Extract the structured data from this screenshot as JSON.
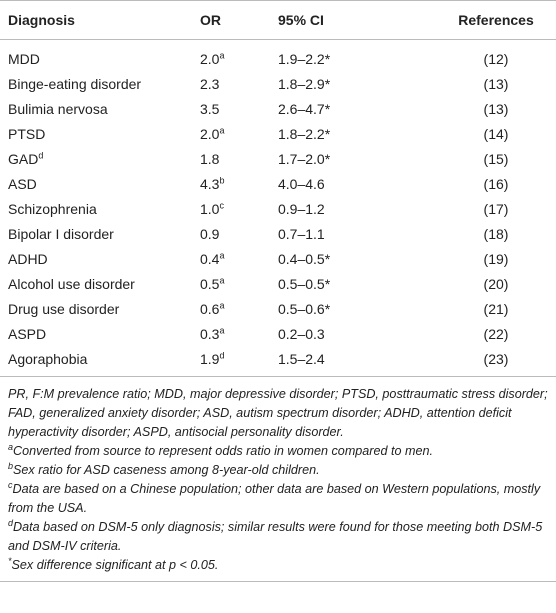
{
  "table": {
    "header": [
      "Diagnosis",
      "OR",
      "95% CI",
      "References"
    ],
    "rows": [
      [
        "MDD",
        {
          "text": "2.0",
          "sup": "a"
        },
        "1.9–2.2*",
        "(12)"
      ],
      [
        "Binge-eating disorder",
        "2.3",
        "1.8–2.9*",
        "(13)"
      ],
      [
        "Bulimia nervosa",
        "3.5",
        "2.6–4.7*",
        "(13)"
      ],
      [
        "PTSD",
        {
          "text": "2.0",
          "sup": "a"
        },
        "1.8–2.2*",
        "(14)"
      ],
      [
        {
          "text": "GAD",
          "sup": "d"
        },
        "1.8",
        "1.7–2.0*",
        "(15)"
      ],
      [
        "ASD",
        {
          "text": "4.3",
          "sup": "b"
        },
        "4.0–4.6",
        "(16)"
      ],
      [
        "Schizophrenia",
        {
          "text": "1.0",
          "sup": "c"
        },
        "0.9–1.2",
        "(17)"
      ],
      [
        "Bipolar I disorder",
        "0.9",
        "0.7–1.1",
        "(18)"
      ],
      [
        "ADHD",
        {
          "text": "0.4",
          "sup": "a"
        },
        "0.4–0.5*",
        "(19)"
      ],
      [
        "Alcohol use disorder",
        {
          "text": "0.5",
          "sup": "a"
        },
        "0.5–0.5*",
        "(20)"
      ],
      [
        "Drug use disorder",
        {
          "text": "0.6",
          "sup": "a"
        },
        "0.5–0.6*",
        "(21)"
      ],
      [
        "ASPD",
        {
          "text": "0.3",
          "sup": "a"
        },
        "0.2–0.3",
        "(22)"
      ],
      [
        "Agoraphobia",
        {
          "text": "1.9",
          "sup": "d"
        },
        "1.5–2.4",
        "(23)"
      ]
    ]
  },
  "footnotes": {
    "abbreviations": "PR, F:M prevalence ratio; MDD, major depressive disorder; PTSD, posttraumatic stress disorder; FAD, generalized anxiety disorder; ASD, autism spectrum disorder; ADHD, attention deficit hyperactivity disorder; ASPD, antisocial personality disorder.",
    "notes": [
      {
        "mark": "a",
        "text": "Converted from source to represent odds ratio in women compared to men."
      },
      {
        "mark": "b",
        "text": "Sex ratio for ASD caseness among 8-year-old children."
      },
      {
        "mark": "c",
        "text": "Data are based on a Chinese population; other data are based on Western populations, mostly from the USA."
      },
      {
        "mark": "d",
        "text": "Data based on DSM-5 only diagnosis; similar results were found for those meeting both DSM-5 and DSM-IV criteria."
      },
      {
        "mark": "*",
        "text": "Sex difference significant at p < 0.05."
      }
    ]
  }
}
